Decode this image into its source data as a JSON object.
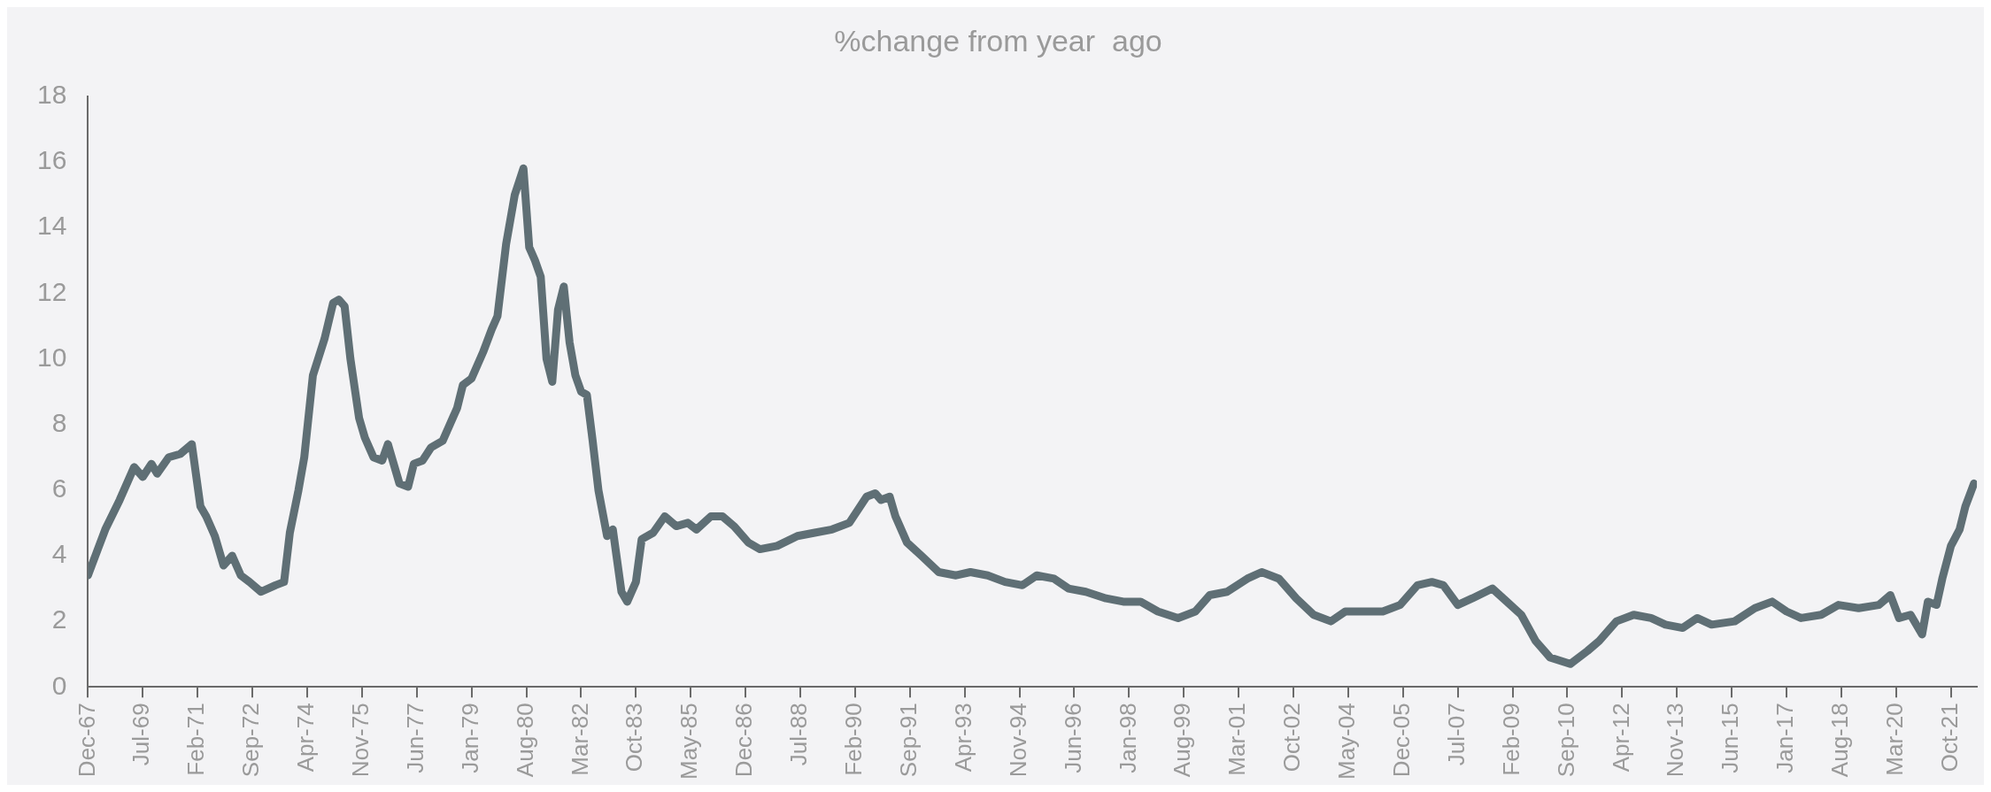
{
  "chart_data": {
    "type": "line",
    "title": "%change from year  ago",
    "x": [
      "1967-12",
      "1968-03",
      "1968-06",
      "1968-11",
      "1969-04",
      "1969-07",
      "1969-10",
      "1969-12",
      "1970-04",
      "1970-08",
      "1970-12",
      "1971-03",
      "1971-05",
      "1971-08",
      "1971-11",
      "1972-02",
      "1972-05",
      "1972-08",
      "1972-12",
      "1973-05",
      "1973-08",
      "1973-10",
      "1974-01",
      "1974-03",
      "1974-06",
      "1974-10",
      "1975-01",
      "1975-03",
      "1975-05",
      "1975-07",
      "1975-10",
      "1975-12",
      "1976-03",
      "1976-06",
      "1976-08",
      "1976-12",
      "1977-03",
      "1977-05",
      "1977-08",
      "1977-11",
      "1978-03",
      "1978-08",
      "1978-10",
      "1979-01",
      "1979-05",
      "1979-08",
      "1979-10",
      "1980-01",
      "1980-04",
      "1980-07",
      "1980-09",
      "1980-11",
      "1981-01",
      "1981-03",
      "1981-05",
      "1981-07",
      "1981-09",
      "1981-11",
      "1982-01",
      "1982-03",
      "1982-05",
      "1982-07",
      "1982-09",
      "1982-12",
      "1983-02",
      "1983-05",
      "1983-07",
      "1983-10",
      "1983-12",
      "1984-04",
      "1984-08",
      "1984-12",
      "1985-04",
      "1985-07",
      "1985-12",
      "1986-04",
      "1986-08",
      "1987-01",
      "1987-05",
      "1987-11",
      "1988-06",
      "1988-12",
      "1989-06",
      "1989-12",
      "1990-06",
      "1990-09",
      "1990-11",
      "1991-02",
      "1991-04",
      "1991-08",
      "1992-01",
      "1992-07",
      "1993-01",
      "1993-06",
      "1993-12",
      "1994-06",
      "1994-12",
      "1995-05",
      "1995-11",
      "1996-04",
      "1996-10",
      "1997-05",
      "1997-11",
      "1998-05",
      "1998-11",
      "1999-06",
      "1999-12",
      "2000-05",
      "2000-11",
      "2001-06",
      "2001-11",
      "2002-05",
      "2002-11",
      "2003-05",
      "2003-11",
      "2004-04",
      "2004-11",
      "2005-05",
      "2005-11",
      "2006-05",
      "2006-10",
      "2007-02",
      "2007-07",
      "2007-12",
      "2008-07",
      "2008-12",
      "2009-05",
      "2009-10",
      "2010-03",
      "2010-10",
      "2011-04",
      "2011-08",
      "2012-02",
      "2012-08",
      "2013-02",
      "2013-07",
      "2014-01",
      "2014-06",
      "2014-11",
      "2015-07",
      "2016-02",
      "2016-08",
      "2017-01",
      "2017-06",
      "2018-01",
      "2018-07",
      "2019-02",
      "2019-09",
      "2020-01",
      "2020-04",
      "2020-08",
      "2020-12",
      "2021-02",
      "2021-05",
      "2021-07",
      "2021-10",
      "2022-01",
      "2022-03",
      "2022-06"
    ],
    "series": [
      {
        "color": "#5f6f75",
        "values": [
          3.4,
          4.1,
          4.8,
          5.7,
          6.7,
          6.4,
          6.8,
          6.5,
          7.0,
          7.1,
          7.4,
          5.5,
          5.2,
          4.6,
          3.7,
          4.0,
          3.4,
          3.2,
          2.9,
          3.1,
          3.2,
          4.7,
          6.0,
          7.0,
          9.5,
          10.6,
          11.7,
          11.8,
          11.6,
          10.0,
          8.2,
          7.6,
          7.0,
          6.9,
          7.4,
          6.2,
          6.1,
          6.8,
          6.9,
          7.3,
          7.5,
          8.5,
          9.2,
          9.4,
          10.2,
          10.9,
          11.3,
          13.5,
          15.0,
          15.8,
          13.4,
          13.0,
          12.5,
          10.0,
          9.3,
          11.5,
          12.2,
          10.5,
          9.5,
          9.0,
          8.9,
          7.5,
          6.0,
          4.6,
          4.8,
          2.9,
          2.6,
          3.2,
          4.5,
          4.7,
          5.2,
          4.9,
          5.0,
          4.8,
          5.2,
          5.2,
          4.9,
          4.4,
          4.2,
          4.3,
          4.6,
          4.7,
          4.8,
          5.0,
          5.8,
          5.9,
          5.7,
          5.8,
          5.2,
          4.4,
          4.0,
          3.5,
          3.4,
          3.5,
          3.4,
          3.2,
          3.1,
          3.4,
          3.3,
          3.0,
          2.9,
          2.7,
          2.6,
          2.6,
          2.3,
          2.1,
          2.3,
          2.8,
          2.9,
          3.3,
          3.5,
          3.3,
          2.7,
          2.2,
          2.0,
          2.3,
          2.3,
          2.3,
          2.5,
          3.1,
          3.2,
          3.1,
          2.5,
          2.7,
          3.0,
          2.6,
          2.2,
          1.4,
          0.9,
          0.7,
          1.1,
          1.4,
          2.0,
          2.2,
          2.1,
          1.9,
          1.8,
          2.1,
          1.9,
          2.0,
          2.4,
          2.6,
          2.3,
          2.1,
          2.2,
          2.5,
          2.4,
          2.5,
          2.8,
          2.1,
          2.2,
          1.6,
          2.6,
          2.5,
          3.3,
          4.3,
          4.8,
          5.5,
          6.2
        ]
      }
    ],
    "xlim": [
      "1967-12",
      "2022-07"
    ],
    "xticks": [
      {
        "value": "1967-12",
        "label": "Dec-67"
      },
      {
        "value": "1969-07",
        "label": "Jul-69"
      },
      {
        "value": "1971-02",
        "label": "Feb-71"
      },
      {
        "value": "1972-09",
        "label": "Sep-72"
      },
      {
        "value": "1974-04",
        "label": "Apr-74"
      },
      {
        "value": "1975-11",
        "label": "Nov-75"
      },
      {
        "value": "1977-06",
        "label": "Jun-77"
      },
      {
        "value": "1979-01",
        "label": "Jan-79"
      },
      {
        "value": "1980-08",
        "label": "Aug-80"
      },
      {
        "value": "1982-03",
        "label": "Mar-82"
      },
      {
        "value": "1983-10",
        "label": "Oct-83"
      },
      {
        "value": "1985-05",
        "label": "May-85"
      },
      {
        "value": "1986-12",
        "label": "Dec-86"
      },
      {
        "value": "1988-07",
        "label": "Jul-88"
      },
      {
        "value": "1990-02",
        "label": "Feb-90"
      },
      {
        "value": "1991-09",
        "label": "Sep-91"
      },
      {
        "value": "1993-04",
        "label": "Apr-93"
      },
      {
        "value": "1994-11",
        "label": "Nov-94"
      },
      {
        "value": "1996-06",
        "label": "Jun-96"
      },
      {
        "value": "1998-01",
        "label": "Jan-98"
      },
      {
        "value": "1999-08",
        "label": "Aug-99"
      },
      {
        "value": "2001-03",
        "label": "Mar-01"
      },
      {
        "value": "2002-10",
        "label": "Oct-02"
      },
      {
        "value": "2004-05",
        "label": "May-04"
      },
      {
        "value": "2005-12",
        "label": "Dec-05"
      },
      {
        "value": "2007-07",
        "label": "Jul-07"
      },
      {
        "value": "2009-02",
        "label": "Feb-09"
      },
      {
        "value": "2010-09",
        "label": "Sep-10"
      },
      {
        "value": "2012-04",
        "label": "Apr-12"
      },
      {
        "value": "2013-11",
        "label": "Nov-13"
      },
      {
        "value": "2015-06",
        "label": "Jun-15"
      },
      {
        "value": "2017-01",
        "label": "Jan-17"
      },
      {
        "value": "2018-08",
        "label": "Aug-18"
      },
      {
        "value": "2020-03",
        "label": "Mar-20"
      },
      {
        "value": "2021-10",
        "label": "Oct-21"
      }
    ],
    "ylim": [
      0,
      18
    ],
    "yticks": [
      0,
      2,
      4,
      6,
      8,
      10,
      12,
      14,
      16,
      18
    ],
    "grid": false,
    "legend": false,
    "marker": "none",
    "line_style": "solid"
  }
}
